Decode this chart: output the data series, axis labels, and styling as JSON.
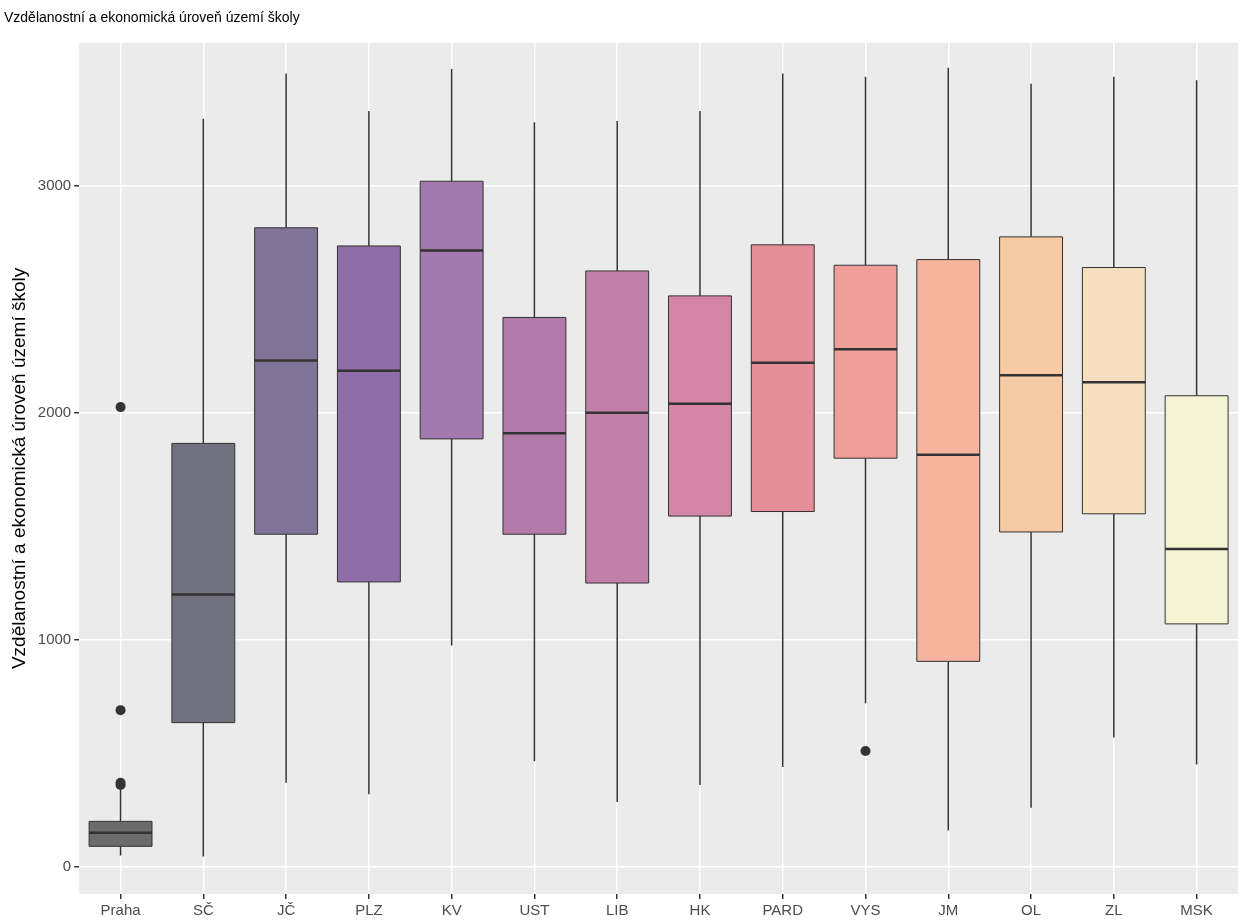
{
  "chart_data": {
    "type": "box",
    "title": "Vzdělanostní a ekonomická úroveň území školy",
    "ylabel": "Vzdělanostní a ekonomická úroveň území školy",
    "categories": [
      "Praha",
      "SČ",
      "JČ",
      "PLZ",
      "KV",
      "UST",
      "LIB",
      "HK",
      "PARD",
      "VYS",
      "JM",
      "OL",
      "ZL",
      "MSK"
    ],
    "boxes": [
      {
        "low": 50,
        "q1": 90,
        "median": 150,
        "q3": 200,
        "high": 340,
        "outliers": [
          360,
          370,
          690,
          2025
        ]
      },
      {
        "low": 45,
        "q1": 635,
        "median": 1200,
        "q3": 1865,
        "high": 3295
      },
      {
        "low": 370,
        "q1": 1465,
        "median": 2230,
        "q3": 2815,
        "high": 3495
      },
      {
        "low": 320,
        "q1": 1255,
        "median": 2185,
        "q3": 2735,
        "high": 3330
      },
      {
        "low": 975,
        "q1": 1885,
        "median": 2715,
        "q3": 3020,
        "high": 3515
      },
      {
        "low": 465,
        "q1": 1465,
        "median": 1910,
        "q3": 2420,
        "high": 3280
      },
      {
        "low": 285,
        "q1": 1250,
        "median": 2000,
        "q3": 2625,
        "high": 3285
      },
      {
        "low": 360,
        "q1": 1545,
        "median": 2040,
        "q3": 2515,
        "high": 3330
      },
      {
        "low": 440,
        "q1": 1565,
        "median": 2220,
        "q3": 2740,
        "high": 3495
      },
      {
        "low": 720,
        "q1": 1800,
        "median": 2280,
        "q3": 2650,
        "high": 3480,
        "outliers": [
          510
        ]
      },
      {
        "low": 160,
        "q1": 905,
        "median": 1815,
        "q3": 2675,
        "high": 3520
      },
      {
        "low": 260,
        "q1": 1475,
        "median": 2165,
        "q3": 2775,
        "high": 3450
      },
      {
        "low": 570,
        "q1": 1555,
        "median": 2135,
        "q3": 2640,
        "high": 3480
      },
      {
        "low": 450,
        "q1": 1070,
        "median": 1400,
        "q3": 2075,
        "high": 3465
      }
    ],
    "colors": [
      "#6b6b6b",
      "#72727f",
      "#7f7497",
      "#8f6ea8",
      "#a27aaf",
      "#b27aa9",
      "#c27fa9",
      "#d586a6",
      "#e68e99",
      "#f09e98",
      "#f6b49e",
      "#f6caa5",
      "#f6dfbe",
      "#f5f4d2"
    ],
    "ylim": [
      -120,
      3630
    ],
    "yticks": [
      0,
      1000,
      2000,
      3000
    ],
    "grid": true
  }
}
